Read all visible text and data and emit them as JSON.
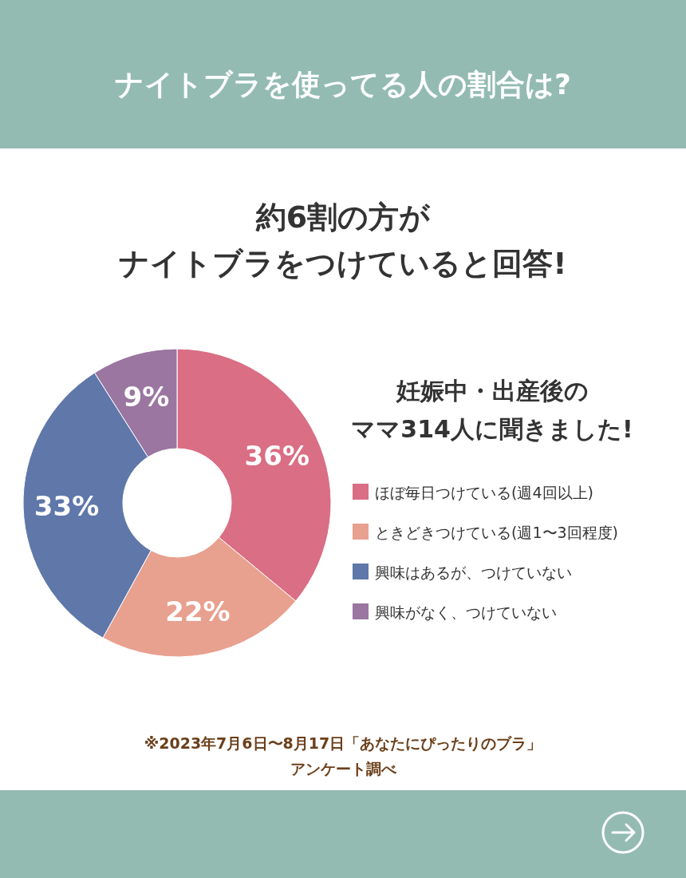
{
  "chart_data": {
    "type": "donut",
    "title": "ナイトブラを使ってる人の割合は?",
    "subtitle": "約6割の方が",
    "categories": [
      "ほぼ毎日つけている(週4回以上)",
      "ときどきつけている(週1〜3回程度)",
      "興味はあるが、つけていない",
      "興味がなく、つけていない"
    ],
    "values": [
      36,
      22,
      33,
      9
    ],
    "colors": [
      "#d96e84",
      "#e8a08f",
      "#5f78a9",
      "#9a76a1"
    ],
    "value_labels": [
      "36%",
      "22%",
      "33%",
      "9%"
    ],
    "legend": "right",
    "annotations": [
      "ナイトブラをつけていると回答!",
      "妊娠中・出産後の",
      "ママ314人に聞きました!",
      "※2023年7月6日〜8月17日「あなたにぴったりのブラ」",
      "アンケート調べ"
    ]
  }
}
